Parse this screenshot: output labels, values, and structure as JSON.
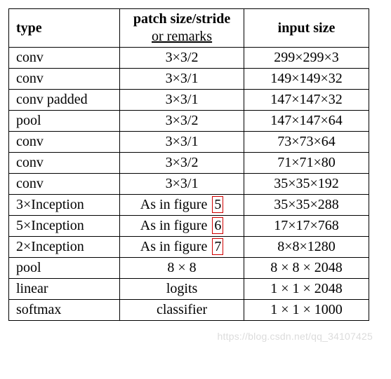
{
  "table": {
    "header": {
      "type": "type",
      "remark_main": "patch size/stride",
      "remark_sub": "or remarks",
      "input": "input size"
    },
    "rows": [
      {
        "type": "conv",
        "remark": "3×3/2",
        "ref": null,
        "input": "299×299×3"
      },
      {
        "type": "conv",
        "remark": "3×3/1",
        "ref": null,
        "input": "149×149×32"
      },
      {
        "type": "conv padded",
        "remark": "3×3/1",
        "ref": null,
        "input": "147×147×32"
      },
      {
        "type": "pool",
        "remark": "3×3/2",
        "ref": null,
        "input": "147×147×64"
      },
      {
        "type": "conv",
        "remark": "3×3/1",
        "ref": null,
        "input": "73×73×64"
      },
      {
        "type": "conv",
        "remark": "3×3/2",
        "ref": null,
        "input": "71×71×80"
      },
      {
        "type": "conv",
        "remark": "3×3/1",
        "ref": null,
        "input": "35×35×192"
      },
      {
        "type": "3×Inception",
        "remark": "As in figure",
        "ref": "5",
        "input": "35×35×288"
      },
      {
        "type": "5×Inception",
        "remark": "As in figure",
        "ref": "6",
        "input": "17×17×768"
      },
      {
        "type": "2×Inception",
        "remark": "As in figure",
        "ref": "7",
        "input": "8×8×1280"
      },
      {
        "type": "pool",
        "remark": "8 × 8",
        "ref": null,
        "input": "8 × 8 × 2048"
      },
      {
        "type": "linear",
        "remark": "logits",
        "ref": null,
        "input": "1 × 1 × 2048"
      },
      {
        "type": "softmax",
        "remark": "classifier",
        "ref": null,
        "input": "1 × 1 × 1000"
      }
    ]
  },
  "watermark": "https://blog.csdn.net/qq_34107425"
}
